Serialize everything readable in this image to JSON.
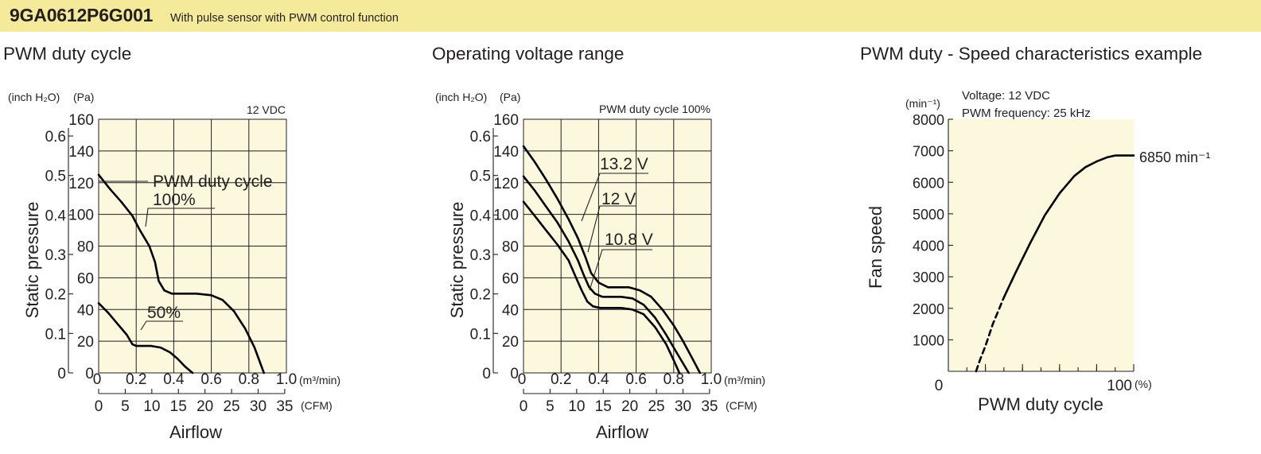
{
  "header": {
    "model": "9GA0612P6G001",
    "description": "With pulse sensor with PWM control function",
    "accent_color": "#f5e99a"
  },
  "chart_data": [
    {
      "type": "line",
      "title": "PWM duty cycle",
      "xlabel": "Airflow",
      "ylabel": "Static pressure",
      "condition": "12 VDC",
      "x_unit": "(m³/min)",
      "x2_unit": "(CFM)",
      "y_unit": "(Pa)",
      "y2_unit": "(inch H₂O)",
      "xlim": [
        0,
        1.0
      ],
      "ylim": [
        0,
        160
      ],
      "x_ticks": [
        "0.2",
        "0.4",
        "0.6",
        "0.8",
        "1.0"
      ],
      "x_origin_label": "0",
      "y_ticks": [
        "0",
        "20",
        "40",
        "60",
        "80",
        "100",
        "120",
        "140",
        "160"
      ],
      "x2_ticks": [
        "0",
        "5",
        "10",
        "15",
        "20",
        "25",
        "30",
        "35"
      ],
      "y2_ticks": [
        "0",
        "0.1",
        "0.2",
        "0.3",
        "0.4",
        "0.5",
        "0.6"
      ],
      "legend_title": "PWM duty cycle",
      "grid": true,
      "series": [
        {
          "name": "100%",
          "x": [
            0,
            0.06,
            0.12,
            0.18,
            0.22,
            0.27,
            0.3,
            0.32,
            0.35,
            0.39,
            0.44,
            0.52,
            0.6,
            0.66,
            0.72,
            0.78,
            0.83,
            0.88
          ],
          "y": [
            125,
            116,
            108,
            99,
            90,
            80,
            70,
            58,
            52,
            50,
            50,
            50,
            49,
            46,
            39,
            28,
            16,
            0
          ]
        },
        {
          "name": "50%",
          "x": [
            0,
            0.05,
            0.1,
            0.15,
            0.18,
            0.2,
            0.23,
            0.28,
            0.33,
            0.38,
            0.42,
            0.46,
            0.5
          ],
          "y": [
            44,
            38,
            31,
            24,
            18,
            17,
            17,
            17,
            16,
            13,
            9,
            4,
            0
          ]
        }
      ]
    },
    {
      "type": "line",
      "title": "Operating voltage range",
      "xlabel": "Airflow",
      "ylabel": "Static pressure",
      "condition": "PWM duty cycle 100%",
      "x_unit": "(m³/min)",
      "x2_unit": "(CFM)",
      "y_unit": "(Pa)",
      "y2_unit": "(inch H₂O)",
      "xlim": [
        0,
        1.0
      ],
      "ylim": [
        0,
        160
      ],
      "x_ticks": [
        "0.2",
        "0.4",
        "0.6",
        "0.8",
        "1.0"
      ],
      "x_origin_label": "0",
      "y_ticks": [
        "0",
        "20",
        "40",
        "60",
        "80",
        "100",
        "120",
        "140",
        "160"
      ],
      "x2_ticks": [
        "0",
        "5",
        "10",
        "15",
        "20",
        "25",
        "30",
        "35"
      ],
      "y2_ticks": [
        "0",
        "0.1",
        "0.2",
        "0.3",
        "0.4",
        "0.5",
        "0.6"
      ],
      "grid": true,
      "series": [
        {
          "name": "13.2 V",
          "x": [
            0,
            0.06,
            0.12,
            0.18,
            0.24,
            0.29,
            0.33,
            0.36,
            0.4,
            0.45,
            0.5,
            0.56,
            0.62,
            0.68,
            0.74,
            0.8,
            0.85,
            0.9,
            0.94
          ],
          "y": [
            143,
            133,
            122,
            110,
            97,
            85,
            73,
            63,
            57,
            54,
            54,
            54,
            52,
            48,
            40,
            30,
            20,
            9,
            0
          ]
        },
        {
          "name": "12 V",
          "x": [
            0,
            0.06,
            0.12,
            0.18,
            0.24,
            0.29,
            0.32,
            0.35,
            0.38,
            0.42,
            0.46,
            0.52,
            0.58,
            0.64,
            0.7,
            0.76,
            0.82,
            0.88
          ],
          "y": [
            124,
            115,
            105,
            95,
            83,
            71,
            62,
            54,
            50,
            48,
            48,
            48,
            47,
            43,
            35,
            24,
            12,
            0
          ]
        },
        {
          "name": "10.8 V",
          "x": [
            0,
            0.06,
            0.12,
            0.18,
            0.24,
            0.28,
            0.31,
            0.34,
            0.37,
            0.41,
            0.46,
            0.52,
            0.58,
            0.64,
            0.7,
            0.76,
            0.8,
            0.83
          ],
          "y": [
            108,
            99,
            90,
            81,
            71,
            60,
            52,
            45,
            42,
            41,
            41,
            41,
            40,
            37,
            29,
            18,
            8,
            0
          ]
        }
      ]
    },
    {
      "type": "line",
      "title": "PWM duty - Speed characteristics example",
      "xlabel": "PWM duty cycle",
      "ylabel": "Fan speed",
      "conditions": [
        "Voltage: 12 VDC",
        "PWM frequency: 25 kHz"
      ],
      "y_unit": "(min⁻¹)",
      "x_unit": "(%)",
      "xlim": [
        0,
        100
      ],
      "ylim": [
        0,
        8000
      ],
      "x_tick_labels": [
        "0",
        "100"
      ],
      "y_ticks": [
        "1000",
        "2000",
        "3000",
        "4000",
        "5000",
        "6000",
        "7000",
        "8000"
      ],
      "grid": false,
      "max_label": "6850 min⁻¹",
      "series": [
        {
          "name": "",
          "x": [
            15,
            17,
            20,
            24,
            30,
            36,
            44,
            52,
            60,
            68,
            74,
            80,
            86,
            90,
            93,
            95,
            100
          ],
          "y": [
            0,
            350,
            800,
            1500,
            2350,
            3100,
            4050,
            4950,
            5650,
            6200,
            6480,
            6660,
            6800,
            6850,
            6850,
            6850,
            6850
          ],
          "dashed_below_x": 30
        }
      ]
    }
  ]
}
